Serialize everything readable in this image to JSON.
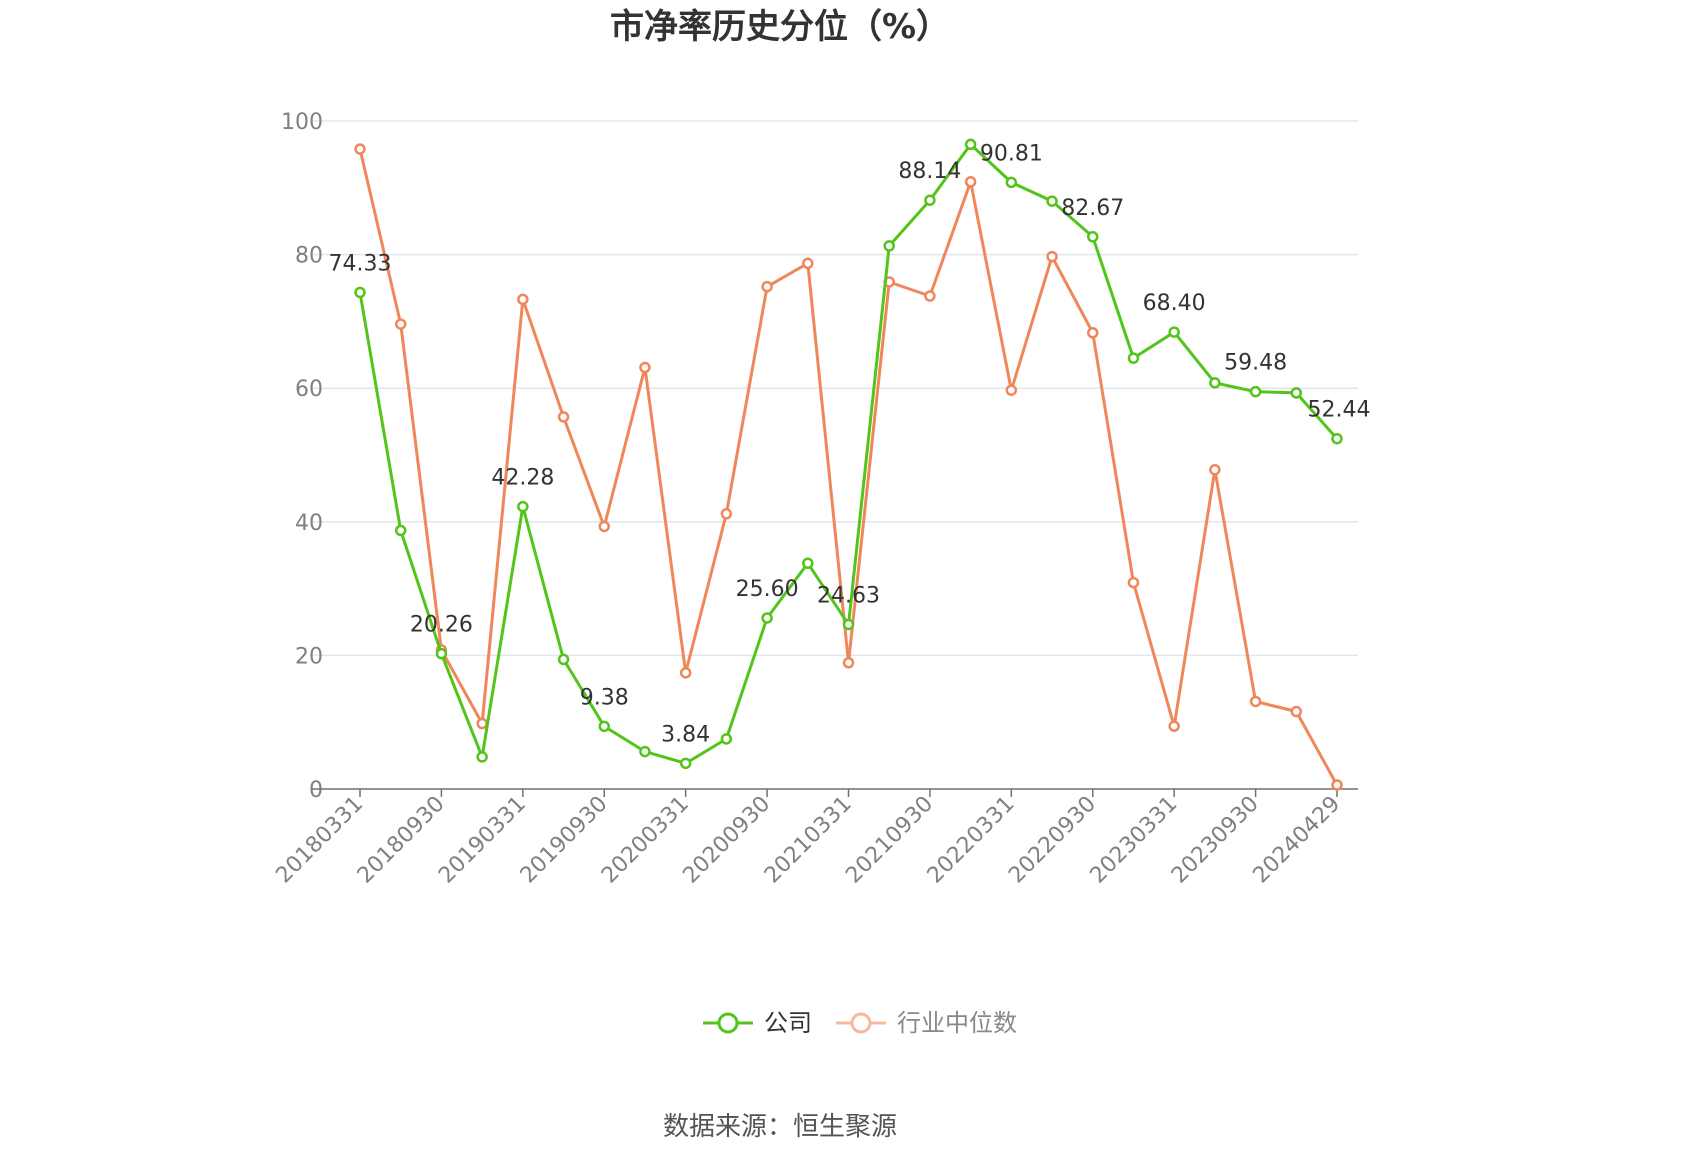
{
  "chart_data": {
    "type": "line",
    "title": "市净率历史分位（%）",
    "source": "数据来源：恒生聚源",
    "ylim": [
      0,
      100
    ],
    "yticks": [
      0,
      20,
      40,
      60,
      80,
      100
    ],
    "grid": true,
    "legend_position": "bottom",
    "x_tick_labels": [
      "20180331",
      "20180930",
      "20190331",
      "20190930",
      "20200331",
      "20200930",
      "20210331",
      "20210930",
      "20220331",
      "20220930",
      "20230331",
      "20230930",
      "20240429"
    ],
    "x": [
      "20180331",
      "20180630",
      "20180930",
      "20181231",
      "20190331",
      "20190630",
      "20190930",
      "20191231",
      "20200331",
      "20200630",
      "20200930",
      "20201231",
      "20210331",
      "20210630",
      "20210930",
      "20211231",
      "20220331",
      "20220630",
      "20220930",
      "20221231",
      "20230331",
      "20230630",
      "20230930",
      "20231231",
      "20240429"
    ],
    "series": [
      {
        "name": "公司",
        "color": "#52c41a",
        "values": [
          74.33,
          38.7,
          20.26,
          4.8,
          42.28,
          19.4,
          9.38,
          5.6,
          3.84,
          7.5,
          25.6,
          33.8,
          24.63,
          81.3,
          88.14,
          96.5,
          90.81,
          88.0,
          82.67,
          64.5,
          68.4,
          60.8,
          59.48,
          59.3,
          52.44
        ],
        "labels": [
          "74.33",
          "",
          "20.26",
          "",
          "42.28",
          "",
          "9.38",
          "",
          "3.84",
          "",
          "25.60",
          "",
          "24.63",
          "",
          "88.14",
          "",
          "90.81",
          "",
          "82.67",
          "",
          "68.40",
          "",
          "59.48",
          "",
          "52.44"
        ]
      },
      {
        "name": "行业中位数",
        "color": "#f0875a",
        "values": [
          95.8,
          69.6,
          20.8,
          9.8,
          73.3,
          55.7,
          39.3,
          63.1,
          17.4,
          41.2,
          75.2,
          78.7,
          18.9,
          75.9,
          73.8,
          90.9,
          59.7,
          79.7,
          68.3,
          30.9,
          9.4,
          47.8,
          13.1,
          11.6,
          0.6
        ]
      }
    ]
  }
}
